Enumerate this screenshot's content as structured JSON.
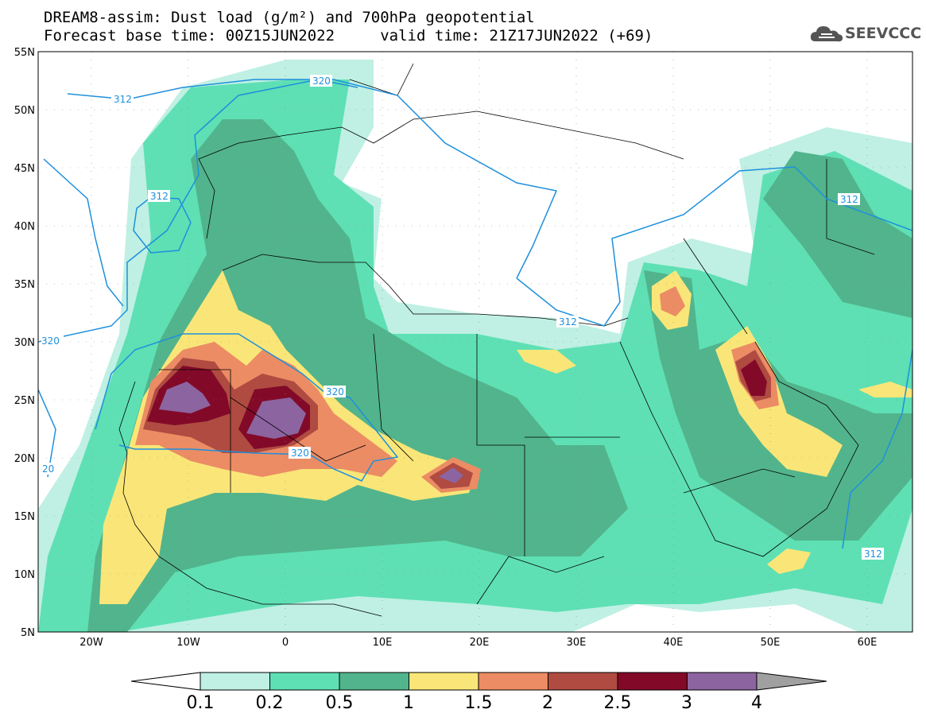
{
  "title": {
    "line1": "DREAM8-assim: Dust load (g/m²) and 700hPa geopotential",
    "line2": "Forecast base time: 00Z15JUN2022     valid time: 21Z17JUN2022 (+69)"
  },
  "logo": {
    "text": "SEEVCCC",
    "icon": "cloud-icon"
  },
  "map": {
    "lon_range": [
      -25,
      65
    ],
    "lat_range": [
      5,
      55
    ],
    "lat_labels": [
      "55N",
      "50N",
      "45N",
      "40N",
      "35N",
      "30N",
      "25N",
      "20N",
      "15N",
      "10N",
      "5N"
    ],
    "lon_labels": [
      "20W",
      "10W",
      "0",
      "10E",
      "20E",
      "30E",
      "40E",
      "50E",
      "60E"
    ]
  },
  "contours": {
    "color": "#1e90dc",
    "labels": [
      "312",
      "320",
      "312",
      "320",
      "320",
      "320",
      "20",
      "312",
      "312",
      "312"
    ]
  },
  "colorbar": {
    "levels": [
      "0.1",
      "0.2",
      "0.5",
      "1",
      "1.5",
      "2",
      "2.5",
      "3",
      "4"
    ],
    "colors": [
      "#bff0e3",
      "#5ee0b4",
      "#52b48c",
      "#fae678",
      "#eb8c64",
      "#af4b41",
      "#820a28",
      "#8c64a0",
      "#a0a0a0"
    ]
  },
  "palette": {
    "d01": "#bff0e3",
    "d02": "#5ee0b4",
    "d05": "#52b48c",
    "d1": "#fae678",
    "d15": "#eb8c64",
    "d2": "#af4b41",
    "d25": "#820a28",
    "d3": "#8c64a0",
    "border": "#000000"
  }
}
